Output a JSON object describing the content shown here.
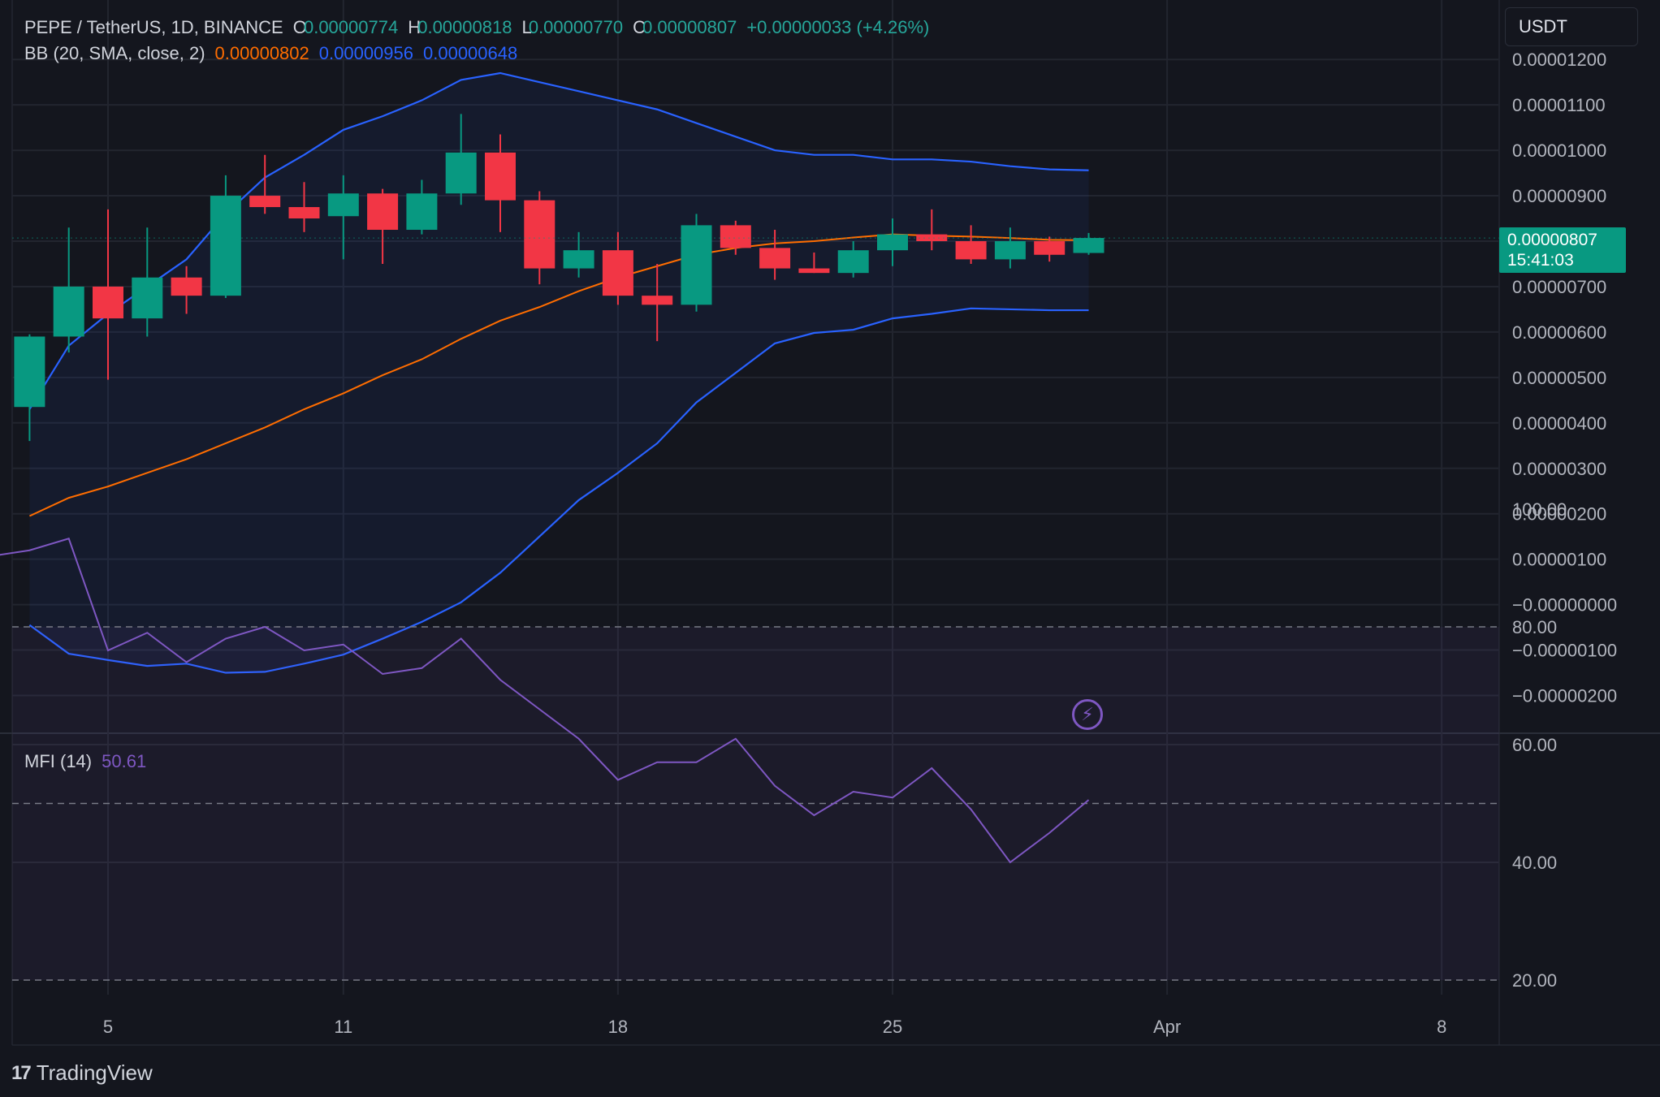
{
  "header": {
    "symbol": "PEPE / TetherUS, 1D, BINANCE",
    "o_label": "O",
    "o_value": "0.00000774",
    "h_label": "H",
    "h_value": "0.00000818",
    "l_label": "L",
    "l_value": "0.00000770",
    "c_label": "C",
    "c_value": "0.00000807",
    "change": "+0.00000033 (+4.26%)"
  },
  "bb_legend": {
    "label": "BB (20, SMA, close, 2)",
    "basis": "0.00000802",
    "upper": "0.00000956",
    "lower": "0.00000648"
  },
  "mfi_legend": {
    "label": "MFI (14)",
    "value": "50.61"
  },
  "currency_button": "USDT",
  "price_tag": {
    "price": "0.00000807",
    "countdown": "15:41:03"
  },
  "branding": {
    "logo_text": "TradingView",
    "logo_mark": "17"
  },
  "colors": {
    "background": "#14161e",
    "up": "#089981",
    "down": "#f23645",
    "bb_band": "#2962ff",
    "bb_basis": "#ff6d00",
    "mfi": "#7e57c2"
  },
  "chart_data": {
    "type": "candlestick",
    "price_axis": {
      "ticks": [
        "0.00001200",
        "0.00001100",
        "0.00001000",
        "0.00000900",
        "0.00000800",
        "0.00000700",
        "0.00000600",
        "0.00000500",
        "0.00000400",
        "0.00000300",
        "0.00000200",
        "0.00000100",
        "−0.00000000",
        "−0.00000100",
        "−0.00000200"
      ],
      "tick_values": [
        1200,
        1100,
        1000,
        900,
        800,
        700,
        600,
        500,
        400,
        300,
        200,
        100,
        0,
        -100,
        -200
      ],
      "unit_note": "values in units of 1e-8 USDT"
    },
    "time_axis": {
      "labels": [
        "5",
        "11",
        "18",
        "25",
        "Apr",
        "8"
      ],
      "label_day_index": [
        4,
        10,
        17,
        24,
        31,
        38
      ]
    },
    "candles": [
      {
        "day": 2,
        "o": 435,
        "h": 595,
        "l": 360,
        "c": 590
      },
      {
        "day": 3,
        "o": 590,
        "h": 830,
        "l": 555,
        "c": 700
      },
      {
        "day": 4,
        "o": 700,
        "h": 870,
        "l": 495,
        "c": 630
      },
      {
        "day": 5,
        "o": 630,
        "h": 830,
        "l": 590,
        "c": 720
      },
      {
        "day": 6,
        "o": 720,
        "h": 745,
        "l": 640,
        "c": 680
      },
      {
        "day": 7,
        "o": 680,
        "h": 945,
        "l": 675,
        "c": 900
      },
      {
        "day": 8,
        "o": 900,
        "h": 990,
        "l": 860,
        "c": 875
      },
      {
        "day": 9,
        "o": 875,
        "h": 930,
        "l": 820,
        "c": 850
      },
      {
        "day": 10,
        "o": 855,
        "h": 945,
        "l": 760,
        "c": 905
      },
      {
        "day": 11,
        "o": 905,
        "h": 915,
        "l": 750,
        "c": 825
      },
      {
        "day": 12,
        "o": 825,
        "h": 935,
        "l": 815,
        "c": 905
      },
      {
        "day": 13,
        "o": 905,
        "h": 1080,
        "l": 880,
        "c": 995
      },
      {
        "day": 14,
        "o": 995,
        "h": 1035,
        "l": 820,
        "c": 890
      },
      {
        "day": 15,
        "o": 890,
        "h": 910,
        "l": 705,
        "c": 740
      },
      {
        "day": 16,
        "o": 740,
        "h": 820,
        "l": 720,
        "c": 780
      },
      {
        "day": 17,
        "o": 780,
        "h": 820,
        "l": 660,
        "c": 680
      },
      {
        "day": 18,
        "o": 680,
        "h": 750,
        "l": 580,
        "c": 660
      },
      {
        "day": 19,
        "o": 660,
        "h": 860,
        "l": 645,
        "c": 835
      },
      {
        "day": 20,
        "o": 835,
        "h": 845,
        "l": 770,
        "c": 785
      },
      {
        "day": 21,
        "o": 785,
        "h": 825,
        "l": 715,
        "c": 740
      },
      {
        "day": 22,
        "o": 740,
        "h": 775,
        "l": 730,
        "c": 730
      },
      {
        "day": 23,
        "o": 730,
        "h": 800,
        "l": 720,
        "c": 780
      },
      {
        "day": 24,
        "o": 780,
        "h": 850,
        "l": 745,
        "c": 815
      },
      {
        "day": 25,
        "o": 815,
        "h": 870,
        "l": 780,
        "c": 800
      },
      {
        "day": 26,
        "o": 800,
        "h": 835,
        "l": 750,
        "c": 760
      },
      {
        "day": 27,
        "o": 760,
        "h": 830,
        "l": 740,
        "c": 800
      },
      {
        "day": 28,
        "o": 800,
        "h": 810,
        "l": 755,
        "c": 770
      },
      {
        "day": 29,
        "o": 774,
        "h": 818,
        "l": 770,
        "c": 807
      }
    ],
    "bollinger": {
      "days": [
        2,
        3,
        4,
        5,
        6,
        7,
        8,
        9,
        10,
        11,
        12,
        13,
        14,
        15,
        16,
        17,
        18,
        19,
        20,
        21,
        22,
        23,
        24,
        25,
        26,
        27,
        28,
        29
      ],
      "upper": [
        430,
        570,
        640,
        700,
        760,
        860,
        940,
        990,
        1045,
        1075,
        1110,
        1155,
        1170,
        1150,
        1130,
        1110,
        1090,
        1060,
        1030,
        1000,
        990,
        990,
        980,
        980,
        975,
        965,
        958,
        956
      ],
      "basis": [
        195,
        235,
        260,
        290,
        320,
        355,
        390,
        430,
        465,
        505,
        540,
        585,
        625,
        655,
        690,
        720,
        745,
        770,
        785,
        795,
        800,
        808,
        815,
        812,
        810,
        807,
        803,
        802
      ],
      "lower": [
        -45,
        -108,
        -122,
        -135,
        -130,
        -150,
        -148,
        -130,
        -110,
        -75,
        -38,
        5,
        70,
        150,
        230,
        290,
        355,
        445,
        510,
        575,
        598,
        605,
        630,
        640,
        652,
        650,
        648,
        648
      ]
    },
    "mfi": {
      "days": [
        1,
        2,
        3,
        4,
        5,
        6,
        7,
        8,
        9,
        10,
        11,
        12,
        13,
        14,
        15,
        16,
        17,
        18,
        19,
        20,
        21,
        22,
        23,
        24,
        25,
        26,
        27,
        28,
        29
      ],
      "values": [
        92,
        93,
        95,
        76,
        79,
        74,
        78,
        80,
        76,
        77,
        72,
        73,
        78,
        71,
        66,
        61,
        54,
        57,
        57,
        61,
        53,
        48,
        52,
        51,
        56,
        49,
        40,
        45,
        50.61
      ],
      "ticks": [
        "100.00",
        "80.00",
        "60.00",
        "40.00",
        "20.00"
      ],
      "tick_values": [
        100,
        80,
        60,
        40,
        20
      ],
      "levels": [
        80,
        50,
        20
      ]
    }
  }
}
